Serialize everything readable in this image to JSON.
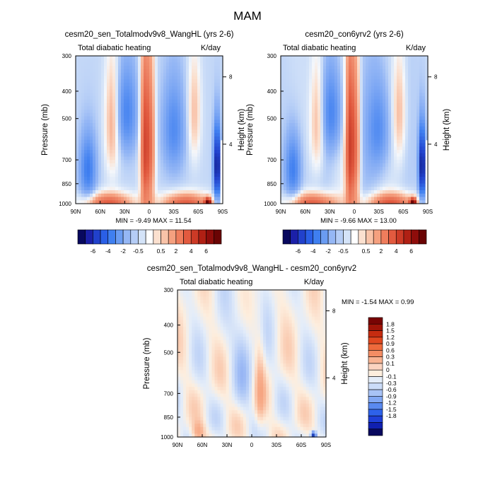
{
  "page": {
    "title": "MAM"
  },
  "chart_data": [
    {
      "type": "heatmap",
      "title": "cesm20_sen_Totalmodv9v8_WangHL (yrs 2-6)",
      "subtitle_left": "Total diabatic heating",
      "subtitle_right": "K/day",
      "ylabel": "Pressure (mb)",
      "y2label": "Height (km)",
      "x_ticks": [
        "90N",
        "60N",
        "30N",
        "0",
        "30S",
        "60S",
        "90S"
      ],
      "y_ticks": [
        "300",
        "400",
        "500",
        "700",
        "850",
        "1000"
      ],
      "y2_ticks": [
        "8",
        "4"
      ],
      "stats": "MIN =  -9.49  MAX =  11.54",
      "ylim": [
        1000,
        300
      ],
      "xlim": [
        "90N",
        "90S"
      ]
    },
    {
      "type": "heatmap",
      "title": "cesm20_con6yrv2 (yrs 2-6)",
      "subtitle_left": "Total diabatic heating",
      "subtitle_right": "K/day",
      "ylabel": "Pressure (mb)",
      "y2label": "Height (km)",
      "x_ticks": [
        "90N",
        "60N",
        "30N",
        "0",
        "30S",
        "60S",
        "90S"
      ],
      "y_ticks": [
        "300",
        "400",
        "500",
        "700",
        "850",
        "1000"
      ],
      "y2_ticks": [
        "8",
        "4"
      ],
      "stats": "MIN =  -9.66  MAX =  13.00",
      "ylim": [
        1000,
        300
      ],
      "xlim": [
        "90N",
        "90S"
      ]
    },
    {
      "type": "heatmap",
      "title": "cesm20_sen_Totalmodv9v8_WangHL - cesm20_con6yrv2",
      "subtitle_left": "Total diabatic heating",
      "subtitle_right": "K/day",
      "ylabel": "Pressure (mb)",
      "y2label": "Height (km)",
      "x_ticks": [
        "90N",
        "60N",
        "30N",
        "0",
        "30S",
        "60S",
        "90S"
      ],
      "y_ticks": [
        "300",
        "400",
        "500",
        "700",
        "850",
        "1000"
      ],
      "y2_ticks": [
        "8",
        "4"
      ],
      "stats": "MIN =  -1.54  MAX =   0.99",
      "ylim": [
        1000,
        300
      ],
      "xlim": [
        "90N",
        "90S"
      ]
    }
  ],
  "colorbar_top": {
    "colors": [
      "#08085e",
      "#1b20a8",
      "#2141cc",
      "#2a5fe6",
      "#3f7ff0",
      "#6a9cf2",
      "#95b7f5",
      "#b5cdf6",
      "#d4e3f8",
      "#ffffff",
      "#fbe0cf",
      "#f9c3a8",
      "#f5a07f",
      "#ef7d5c",
      "#e25a3f",
      "#cc3a26",
      "#b02014",
      "#8e0d0b",
      "#6a0404"
    ],
    "labels": [
      "-6",
      "-4",
      "-2",
      "-0.5",
      "0.5",
      "2",
      "4",
      "6"
    ]
  },
  "colorbar_diff": {
    "colors": [
      "#08085e",
      "#1020b0",
      "#1f40d8",
      "#2e62ea",
      "#5a8af0",
      "#82a8f4",
      "#a8c3f6",
      "#cbdcf8",
      "#e4edf9",
      "#fdeede",
      "#fbd4c0",
      "#f8b392",
      "#f48d64",
      "#ee6a3c",
      "#e04820",
      "#c62c10",
      "#a01408",
      "#780404"
    ],
    "labels": [
      "1.8",
      "1.5",
      "1.2",
      "0.9",
      "0.6",
      "0.3",
      "0.1",
      "0",
      "-0.1",
      "-0.3",
      "-0.6",
      "-0.9",
      "-1.2",
      "-1.5",
      "-1.8"
    ]
  }
}
